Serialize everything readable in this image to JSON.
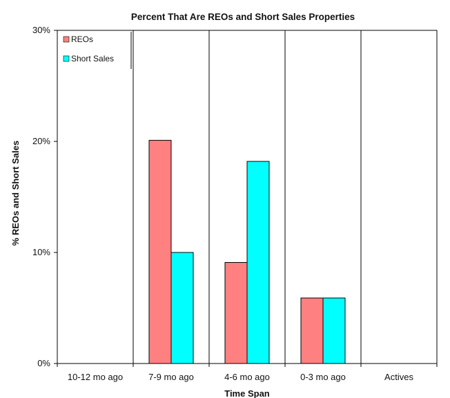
{
  "chart_data": {
    "type": "bar",
    "title": "Percent That Are REOs and Short Sales Properties",
    "xlabel": "Time Span",
    "ylabel": "% REOs and Short Sales",
    "categories": [
      "10-12 mo ago",
      "7-9 mo ago",
      "4-6 mo ago",
      "0-3 mo ago",
      "Actives"
    ],
    "series": [
      {
        "name": "REOs",
        "color": "#FF8080",
        "values": [
          0,
          20.1,
          9.1,
          5.9,
          0
        ]
      },
      {
        "name": "Short Sales",
        "color": "#00FFFF",
        "values": [
          0,
          10.0,
          18.2,
          5.9,
          0
        ]
      }
    ],
    "ylim": [
      0,
      30
    ],
    "yticks": [
      "0%",
      "10%",
      "20%",
      "30%"
    ],
    "ytick_values": [
      0,
      10,
      20,
      30
    ],
    "legend": "top-left",
    "grid": false
  }
}
